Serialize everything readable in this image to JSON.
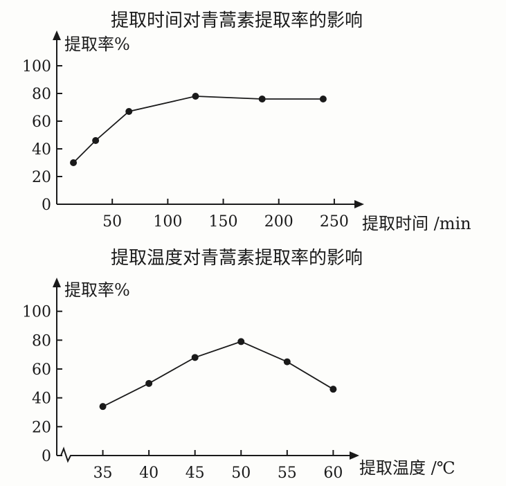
{
  "chart_data": [
    {
      "type": "line",
      "title": "提取时间对青蒿素提取率的影响",
      "ylabel": "提取率%",
      "xlabel": "提取时间 /min",
      "x": [
        15,
        35,
        65,
        125,
        185,
        240
      ],
      "series": [
        {
          "values": [
            30,
            46,
            67,
            78,
            76,
            76
          ]
        }
      ],
      "xticks": [
        "50",
        "100",
        "150",
        "200",
        "250"
      ],
      "xtick_values": [
        50,
        100,
        150,
        200,
        250
      ],
      "yticks": [
        "0",
        "20",
        "40",
        "60",
        "80",
        "100"
      ],
      "ytick_values": [
        0,
        20,
        40,
        60,
        80,
        100
      ],
      "xlim": [
        0,
        270
      ],
      "ylim": [
        0,
        120
      ]
    },
    {
      "type": "line",
      "title": "提取温度对青蒿素提取率的影响",
      "ylabel": "提取率%",
      "xlabel": "提取温度 /℃",
      "x": [
        35,
        40,
        45,
        50,
        55,
        60
      ],
      "series": [
        {
          "values": [
            34,
            50,
            68,
            79,
            65,
            46
          ]
        }
      ],
      "xticks": [
        "35",
        "40",
        "45",
        "50",
        "55",
        "60"
      ],
      "xtick_values": [
        35,
        40,
        45,
        50,
        55,
        60
      ],
      "yticks": [
        "0",
        "20",
        "40",
        "60",
        "80",
        "100"
      ],
      "ytick_values": [
        0,
        20,
        40,
        60,
        80,
        100
      ],
      "xlim": [
        30,
        62
      ],
      "ylim": [
        0,
        120
      ],
      "axis_break": true
    }
  ]
}
